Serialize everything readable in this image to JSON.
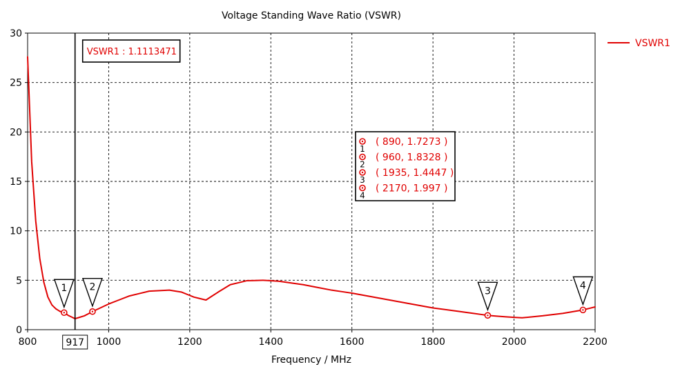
{
  "chart_data": {
    "type": "line",
    "title": "Voltage Standing Wave Ratio (VSWR)",
    "xlabel": "Frequency / MHz",
    "ylabel": "",
    "xlim": [
      800,
      2200
    ],
    "ylim": [
      0,
      30
    ],
    "xticks": [
      800,
      1000,
      1200,
      1400,
      1600,
      1800,
      2000,
      2200
    ],
    "yticks": [
      0,
      5,
      10,
      15,
      20,
      25,
      30
    ],
    "grid": true,
    "legend_position": "right",
    "series": [
      {
        "name": "VSWR1",
        "color": "#e00000",
        "x": [
          800,
          810,
          820,
          830,
          840,
          850,
          860,
          870,
          880,
          890,
          900,
          917,
          940,
          960,
          1000,
          1050,
          1100,
          1150,
          1180,
          1210,
          1240,
          1270,
          1300,
          1340,
          1380,
          1420,
          1480,
          1550,
          1600,
          1700,
          1800,
          1900,
          1935,
          1980,
          2020,
          2070,
          2120,
          2170,
          2200
        ],
        "y": [
          27.6,
          17.0,
          11.0,
          7.2,
          4.8,
          3.3,
          2.5,
          2.1,
          1.85,
          1.7273,
          1.45,
          1.1113,
          1.4,
          1.8328,
          2.6,
          3.4,
          3.9,
          4.0,
          3.8,
          3.3,
          3.0,
          3.8,
          4.55,
          4.95,
          5.0,
          4.9,
          4.55,
          4.0,
          3.7,
          2.95,
          2.2,
          1.65,
          1.4447,
          1.3,
          1.2,
          1.4,
          1.65,
          1.997,
          2.3
        ]
      }
    ],
    "cursor": {
      "x": 917,
      "x_label": "917",
      "label": "VSWR1 : 1.1113471"
    },
    "markers": [
      {
        "id": "1",
        "x": 890,
        "y": 1.7273,
        "label": "( 890, 1.7273 )"
      },
      {
        "id": "2",
        "x": 960,
        "y": 1.8328,
        "label": "( 960, 1.8328 )"
      },
      {
        "id": "3",
        "x": 1935,
        "y": 1.4447,
        "label": "( 1935, 1.4447 )"
      },
      {
        "id": "4",
        "x": 2170,
        "y": 1.997,
        "label": "( 2170, 1.997 )"
      }
    ]
  }
}
